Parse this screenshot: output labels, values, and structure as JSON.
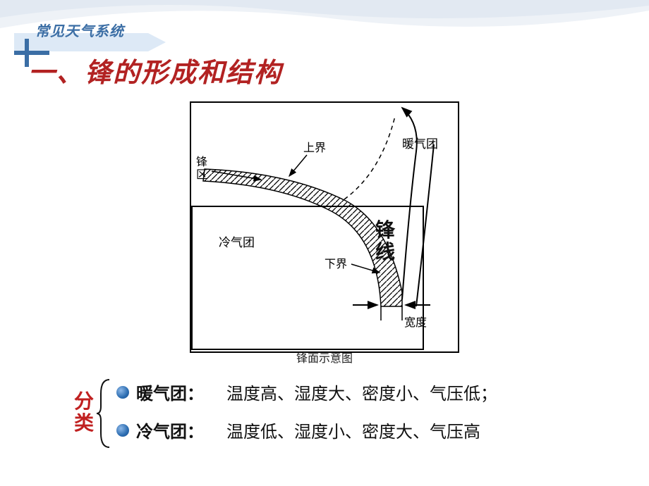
{
  "header": {
    "tag": "常见天气系统",
    "title": "一、锋的形成和结构"
  },
  "diagram": {
    "type": "diagram",
    "caption": "锋面示意图",
    "labels": {
      "warm_air": "暖气团",
      "cold_air": "冷气团",
      "upper": "上界",
      "lower": "下界",
      "zone": "锋区",
      "width": "宽度",
      "front_line": "锋线"
    },
    "colors": {
      "stroke": "#000000",
      "background": "#ffffff",
      "text": "#000000"
    },
    "style": {
      "border_width": 2,
      "frontal_band_hatch": true,
      "dashed_upper": true,
      "font_size_labels": 16
    },
    "geometry": {
      "outer_box": [
        10,
        10,
        390,
        360
      ],
      "ground_box": [
        12,
        160,
        330,
        203
      ],
      "frontal_band": "curved wedge from upper-left to ground",
      "arrows": [
        "warm-up-right",
        "zone-in",
        "upper-in",
        "lower-left",
        "ground-cut-left",
        "ground-cut-right"
      ]
    }
  },
  "classification": {
    "label": "分类",
    "items": [
      {
        "name": "暖气团：",
        "desc": "温度高、湿度大、密度小、气压低；"
      },
      {
        "name": "冷气团：",
        "desc": "温度低、湿度小、密度大、气压高"
      }
    ]
  },
  "palette": {
    "title_red": "#b22222",
    "tag_blue": "#3b6ea5",
    "classify_red": "#c02020",
    "dot_blue": "#2b6cb0",
    "text": "#111111",
    "bg": "#ffffff",
    "swoosh_light": "#e8eef5"
  },
  "typography": {
    "title_size": 38,
    "tag_size": 20,
    "body_size": 24,
    "caption_size": 16
  }
}
